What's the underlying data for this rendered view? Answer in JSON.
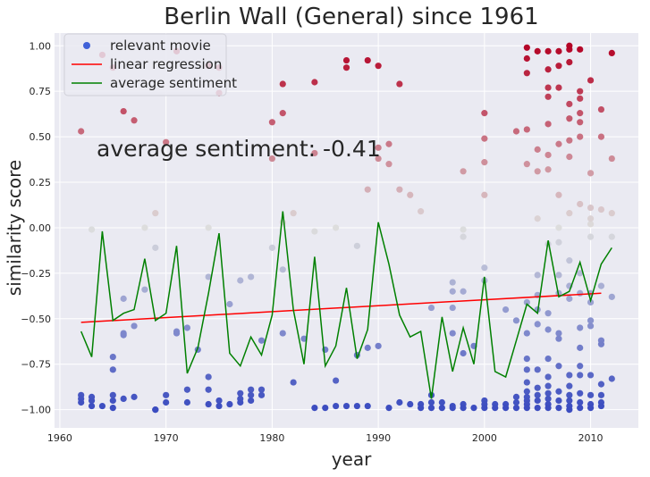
{
  "chart_data": {
    "type": "scatter",
    "title": "Berlin Wall (General) since 1961",
    "xlabel": "year",
    "ylabel": "similarity score",
    "xlim": [
      1959.5,
      2014.5
    ],
    "ylim": [
      -1.1,
      1.07
    ],
    "x_ticks": [
      1960,
      1970,
      1980,
      1990,
      2000,
      2010
    ],
    "x_tick_labels": [
      "1960",
      "1970",
      "1980",
      "1990",
      "2000",
      "2010"
    ],
    "y_ticks": [
      -1.0,
      -0.75,
      -0.5,
      -0.25,
      0.0,
      0.25,
      0.5,
      0.75,
      1.0
    ],
    "y_tick_labels": [
      "−1.00",
      "−0.75",
      "−0.50",
      "−0.25",
      "0.00",
      "0.25",
      "0.50",
      "0.75",
      "1.00"
    ],
    "grid": true,
    "legend_position": "top-left",
    "annotation": "average sentiment: -0.41",
    "colors": {
      "background": "#EAEAF2",
      "grid": "#FFFFFF",
      "regression": "#FF0000",
      "average": "#008000",
      "cmap_low": "#3B4CC0",
      "cmap_mid": "#DDDDDD",
      "cmap_high": "#B40426"
    },
    "legend": [
      {
        "label": "relevant movie",
        "kind": "marker",
        "color": "#4061D8"
      },
      {
        "label": "linear regression",
        "kind": "line",
        "color": "#FF0000"
      },
      {
        "label": "average sentiment",
        "kind": "line",
        "color": "#008000"
      }
    ],
    "series": [
      {
        "name": "relevant movie",
        "points": [
          [
            1962,
            -0.92
          ],
          [
            1962,
            -0.94
          ],
          [
            1962,
            -0.96
          ],
          [
            1962,
            0.53
          ],
          [
            1963,
            -0.93
          ],
          [
            1963,
            -0.95
          ],
          [
            1963,
            -0.98
          ],
          [
            1963,
            -0.01
          ],
          [
            1964,
            -0.98
          ],
          [
            1964,
            0.95
          ],
          [
            1965,
            -0.71
          ],
          [
            1965,
            -0.78
          ],
          [
            1965,
            -0.92
          ],
          [
            1965,
            -0.95
          ],
          [
            1965,
            -0.99
          ],
          [
            1965,
            0.88
          ],
          [
            1966,
            -0.39
          ],
          [
            1966,
            -0.58
          ],
          [
            1966,
            -0.59
          ],
          [
            1966,
            -0.94
          ],
          [
            1966,
            0.64
          ],
          [
            1967,
            -0.54
          ],
          [
            1967,
            -0.93
          ],
          [
            1967,
            0.59
          ],
          [
            1968,
            -0.34
          ],
          [
            1968,
            0.0
          ],
          [
            1969,
            -0.11
          ],
          [
            1969,
            0.08
          ],
          [
            1969,
            -1.0
          ],
          [
            1969,
            -1.0
          ],
          [
            1970,
            -0.92
          ],
          [
            1970,
            -0.96
          ],
          [
            1970,
            0.47
          ],
          [
            1971,
            -0.57
          ],
          [
            1971,
            -0.58
          ],
          [
            1971,
            0.97
          ],
          [
            1972,
            -0.55
          ],
          [
            1972,
            -0.89
          ],
          [
            1972,
            -0.96
          ],
          [
            1973,
            -0.67
          ],
          [
            1974,
            -0.82
          ],
          [
            1974,
            -0.89
          ],
          [
            1974,
            -0.97
          ],
          [
            1974,
            -0.27
          ],
          [
            1974,
            0.0
          ],
          [
            1974,
            0.89
          ],
          [
            1975,
            -0.95
          ],
          [
            1975,
            -0.98
          ],
          [
            1975,
            0.74
          ],
          [
            1975,
            0.88
          ],
          [
            1976,
            -0.42
          ],
          [
            1976,
            -0.97
          ],
          [
            1977,
            -0.29
          ],
          [
            1977,
            -0.91
          ],
          [
            1977,
            -0.94
          ],
          [
            1977,
            -0.96
          ],
          [
            1978,
            -0.27
          ],
          [
            1978,
            -0.89
          ],
          [
            1978,
            -0.92
          ],
          [
            1978,
            -0.95
          ],
          [
            1979,
            -0.62
          ],
          [
            1979,
            -0.89
          ],
          [
            1979,
            -0.92
          ],
          [
            1980,
            -0.11
          ],
          [
            1980,
            0.38
          ],
          [
            1980,
            0.58
          ],
          [
            1981,
            -0.58
          ],
          [
            1981,
            -0.23
          ],
          [
            1981,
            0.03
          ],
          [
            1981,
            0.79
          ],
          [
            1981,
            0.63
          ],
          [
            1982,
            -0.85
          ],
          [
            1982,
            0.08
          ],
          [
            1983,
            -0.61
          ],
          [
            1984,
            -0.99
          ],
          [
            1984,
            -0.02
          ],
          [
            1984,
            0.41
          ],
          [
            1984,
            0.8
          ],
          [
            1985,
            -0.67
          ],
          [
            1985,
            -0.99
          ],
          [
            1986,
            -0.84
          ],
          [
            1986,
            -0.98
          ],
          [
            1986,
            0.0
          ],
          [
            1987,
            -0.98
          ],
          [
            1987,
            0.88
          ],
          [
            1987,
            0.92
          ],
          [
            1988,
            -0.7
          ],
          [
            1988,
            -0.98
          ],
          [
            1988,
            -0.1
          ],
          [
            1989,
            -0.66
          ],
          [
            1989,
            -0.98
          ],
          [
            1989,
            0.21
          ],
          [
            1989,
            0.92
          ],
          [
            1990,
            -0.65
          ],
          [
            1990,
            0.38
          ],
          [
            1990,
            0.44
          ],
          [
            1990,
            0.89
          ],
          [
            1991,
            -0.99
          ],
          [
            1991,
            0.35
          ],
          [
            1991,
            0.46
          ],
          [
            1992,
            -0.96
          ],
          [
            1992,
            0.21
          ],
          [
            1992,
            0.79
          ],
          [
            1993,
            -0.97
          ],
          [
            1993,
            0.18
          ],
          [
            1994,
            -0.97
          ],
          [
            1994,
            -0.99
          ],
          [
            1994,
            0.09
          ],
          [
            1995,
            -0.92
          ],
          [
            1995,
            -0.96
          ],
          [
            1995,
            -0.99
          ],
          [
            1995,
            -0.44
          ],
          [
            1996,
            -0.96
          ],
          [
            1996,
            -0.99
          ],
          [
            1997,
            -0.3
          ],
          [
            1997,
            -0.35
          ],
          [
            1997,
            -0.44
          ],
          [
            1997,
            -0.58
          ],
          [
            1997,
            -0.98
          ],
          [
            1997,
            -0.99
          ],
          [
            1998,
            -0.35
          ],
          [
            1998,
            -0.69
          ],
          [
            1998,
            -0.97
          ],
          [
            1998,
            -0.99
          ],
          [
            1998,
            -0.05
          ],
          [
            1998,
            -0.01
          ],
          [
            1998,
            0.31
          ],
          [
            1999,
            -0.65
          ],
          [
            1999,
            -0.99
          ],
          [
            2000,
            -0.22
          ],
          [
            2000,
            -0.29
          ],
          [
            2000,
            -0.95
          ],
          [
            2000,
            -0.97
          ],
          [
            2000,
            -0.99
          ],
          [
            2000,
            0.18
          ],
          [
            2000,
            0.36
          ],
          [
            2000,
            0.49
          ],
          [
            2000,
            0.63
          ],
          [
            2001,
            -0.97
          ],
          [
            2001,
            -0.99
          ],
          [
            2002,
            -0.45
          ],
          [
            2002,
            -0.97
          ],
          [
            2002,
            -0.99
          ],
          [
            2003,
            -0.51
          ],
          [
            2003,
            -0.93
          ],
          [
            2003,
            -0.96
          ],
          [
            2003,
            -0.99
          ],
          [
            2003,
            0.53
          ],
          [
            2004,
            -0.41
          ],
          [
            2004,
            -0.58
          ],
          [
            2004,
            -0.72
          ],
          [
            2004,
            -0.78
          ],
          [
            2004,
            -0.85
          ],
          [
            2004,
            -0.9
          ],
          [
            2004,
            -0.93
          ],
          [
            2004,
            -0.95
          ],
          [
            2004,
            -0.97
          ],
          [
            2004,
            -0.99
          ],
          [
            2004,
            0.35
          ],
          [
            2004,
            0.54
          ],
          [
            2004,
            0.85
          ],
          [
            2004,
            0.93
          ],
          [
            2004,
            0.99
          ],
          [
            2005,
            -0.26
          ],
          [
            2005,
            -0.37
          ],
          [
            2005,
            -0.45
          ],
          [
            2005,
            -0.53
          ],
          [
            2005,
            -0.78
          ],
          [
            2005,
            -0.88
          ],
          [
            2005,
            -0.92
          ],
          [
            2005,
            -0.95
          ],
          [
            2005,
            -0.99
          ],
          [
            2005,
            0.05
          ],
          [
            2005,
            0.31
          ],
          [
            2005,
            0.43
          ],
          [
            2005,
            0.97
          ],
          [
            2006,
            -0.47
          ],
          [
            2006,
            -0.56
          ],
          [
            2006,
            -0.72
          ],
          [
            2006,
            -0.82
          ],
          [
            2006,
            -0.87
          ],
          [
            2006,
            -0.91
          ],
          [
            2006,
            -0.94
          ],
          [
            2006,
            -0.97
          ],
          [
            2006,
            -0.99
          ],
          [
            2006,
            -0.09
          ],
          [
            2006,
            0.32
          ],
          [
            2006,
            0.4
          ],
          [
            2006,
            0.57
          ],
          [
            2006,
            0.72
          ],
          [
            2006,
            0.77
          ],
          [
            2006,
            0.87
          ],
          [
            2006,
            0.97
          ],
          [
            2007,
            -0.26
          ],
          [
            2007,
            -0.36
          ],
          [
            2007,
            -0.58
          ],
          [
            2007,
            -0.61
          ],
          [
            2007,
            -0.76
          ],
          [
            2007,
            -0.9
          ],
          [
            2007,
            -0.95
          ],
          [
            2007,
            -0.99
          ],
          [
            2007,
            -0.08
          ],
          [
            2007,
            0.0
          ],
          [
            2007,
            0.18
          ],
          [
            2007,
            0.46
          ],
          [
            2007,
            0.77
          ],
          [
            2007,
            0.89
          ],
          [
            2007,
            0.97
          ],
          [
            2008,
            -0.18
          ],
          [
            2008,
            -0.32
          ],
          [
            2008,
            -0.39
          ],
          [
            2008,
            -0.81
          ],
          [
            2008,
            -0.87
          ],
          [
            2008,
            -0.92
          ],
          [
            2008,
            -0.95
          ],
          [
            2008,
            -0.98
          ],
          [
            2008,
            -1.0
          ],
          [
            2008,
            0.08
          ],
          [
            2008,
            0.39
          ],
          [
            2008,
            0.48
          ],
          [
            2008,
            0.6
          ],
          [
            2008,
            0.68
          ],
          [
            2008,
            0.91
          ],
          [
            2008,
            0.98
          ],
          [
            2008,
            1.0
          ],
          [
            2009,
            -0.25
          ],
          [
            2009,
            -0.36
          ],
          [
            2009,
            -0.55
          ],
          [
            2009,
            -0.66
          ],
          [
            2009,
            -0.76
          ],
          [
            2009,
            -0.81
          ],
          [
            2009,
            -0.91
          ],
          [
            2009,
            -0.96
          ],
          [
            2009,
            -0.99
          ],
          [
            2009,
            0.13
          ],
          [
            2009,
            0.5
          ],
          [
            2009,
            0.58
          ],
          [
            2009,
            0.63
          ],
          [
            2009,
            0.71
          ],
          [
            2009,
            0.75
          ],
          [
            2009,
            0.98
          ],
          [
            2010,
            -0.36
          ],
          [
            2010,
            -0.41
          ],
          [
            2010,
            -0.51
          ],
          [
            2010,
            -0.54
          ],
          [
            2010,
            -0.81
          ],
          [
            2010,
            -0.92
          ],
          [
            2010,
            -0.97
          ],
          [
            2010,
            -0.99
          ],
          [
            2010,
            -0.05
          ],
          [
            2010,
            0.02
          ],
          [
            2010,
            0.05
          ],
          [
            2010,
            0.11
          ],
          [
            2010,
            0.3
          ],
          [
            2010,
            0.81
          ],
          [
            2011,
            -0.32
          ],
          [
            2011,
            -0.62
          ],
          [
            2011,
            -0.64
          ],
          [
            2011,
            -0.86
          ],
          [
            2011,
            -0.92
          ],
          [
            2011,
            -0.96
          ],
          [
            2011,
            -0.98
          ],
          [
            2011,
            0.1
          ],
          [
            2011,
            0.5
          ],
          [
            2011,
            0.65
          ],
          [
            2012,
            -0.38
          ],
          [
            2012,
            -0.83
          ],
          [
            2012,
            -0.05
          ],
          [
            2012,
            0.08
          ],
          [
            2012,
            0.38
          ],
          [
            2012,
            0.96
          ]
        ]
      },
      {
        "name": "linear regression",
        "x": [
          1962,
          2011
        ],
        "y": [
          -0.52,
          -0.36
        ]
      },
      {
        "name": "average sentiment",
        "x": [
          1962,
          1963,
          1964,
          1965,
          1966,
          1967,
          1968,
          1969,
          1970,
          1971,
          1972,
          1973,
          1974,
          1975,
          1976,
          1977,
          1978,
          1979,
          1980,
          1981,
          1982,
          1983,
          1984,
          1985,
          1986,
          1987,
          1988,
          1989,
          1990,
          1991,
          1992,
          1993,
          1994,
          1995,
          1996,
          1997,
          1998,
          1999,
          2000,
          2001,
          2002,
          2003,
          2004,
          2005,
          2006,
          2007,
          2008,
          2009,
          2010,
          2011,
          2012
        ],
        "y": [
          -0.57,
          -0.71,
          -0.02,
          -0.51,
          -0.47,
          -0.45,
          -0.17,
          -0.51,
          -0.47,
          -0.1,
          -0.8,
          -0.66,
          -0.36,
          -0.03,
          -0.69,
          -0.76,
          -0.6,
          -0.7,
          -0.48,
          0.09,
          -0.45,
          -0.75,
          -0.16,
          -0.76,
          -0.65,
          -0.33,
          -0.72,
          -0.56,
          0.03,
          -0.2,
          -0.48,
          -0.6,
          -0.57,
          -0.94,
          -0.49,
          -0.79,
          -0.55,
          -0.75,
          -0.27,
          -0.79,
          -0.82,
          -0.62,
          -0.42,
          -0.47,
          -0.07,
          -0.38,
          -0.35,
          -0.19,
          -0.4,
          -0.2,
          -0.11
        ]
      }
    ]
  }
}
